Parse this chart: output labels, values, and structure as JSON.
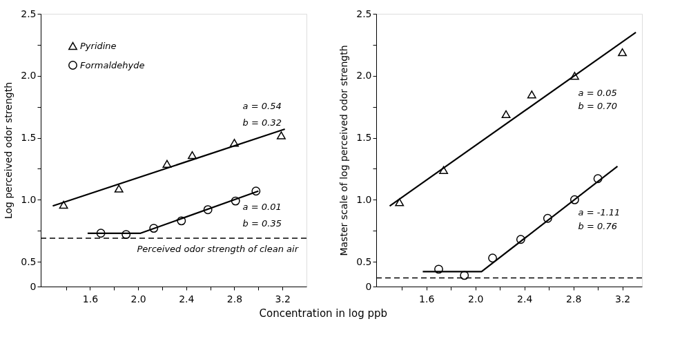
{
  "chart_data": [
    {
      "type": "scatter",
      "xlabel": "Concentration in log ppb",
      "ylabel": "Log perceived odor strength",
      "xlim": [
        1.19,
        3.4
      ],
      "xticks": [
        {
          "value": 1.4,
          "label": null
        },
        1.6,
        {
          "value": 1.8,
          "label": null
        },
        {
          "value": 2.0,
          "label": "2.0"
        },
        {
          "value": 2.2,
          "label": null
        },
        2.4,
        {
          "value": 2.6,
          "label": null
        },
        2.8,
        {
          "value": 3.0,
          "label": null
        },
        3.2
      ],
      "ylim": [
        0.3,
        2.5
      ],
      "yticks": [
        {
          "value": 0.3,
          "label": "0"
        },
        0.5,
        {
          "value": 0.75,
          "label": null
        },
        {
          "value": 1.0,
          "label": "1.0"
        },
        {
          "value": 1.25,
          "label": null
        },
        1.5,
        {
          "value": 1.75,
          "label": null
        },
        {
          "value": 2.0,
          "label": "2.0"
        },
        {
          "value": 2.25,
          "label": null
        },
        2.5
      ],
      "grid": false,
      "legend": "top left",
      "series": [
        {
          "name": "Pyridine",
          "type": "scatter",
          "marker": "triangle",
          "color": "#000000",
          "x": [
            1.38,
            1.84,
            2.24,
            2.45,
            2.8,
            3.19
          ],
          "values": [
            0.96,
            1.09,
            1.29,
            1.36,
            1.46,
            1.52
          ]
        },
        {
          "name": "Formaldehyde",
          "type": "scatter",
          "marker": "circle",
          "color": "#000000",
          "x": [
            1.69,
            1.9,
            2.13,
            2.36,
            2.58,
            2.81,
            2.98
          ],
          "values": [
            0.73,
            0.72,
            0.77,
            0.83,
            0.92,
            0.99,
            1.07
          ]
        },
        {
          "type": "line",
          "color": "#000000",
          "x": [
            1.29,
            3.22
          ],
          "values": [
            0.95,
            1.57
          ]
        },
        {
          "type": "line",
          "color": "#000000",
          "x": [
            1.58,
            2.02,
            3.0
          ],
          "values": [
            0.73,
            0.73,
            1.07
          ]
        }
      ],
      "ref_lines": [
        {
          "axis": "y",
          "value": 0.69,
          "label": "Perceived odor strength of clean air",
          "color": "#000000",
          "line_style": "dashed"
        }
      ],
      "annotations": [
        "a = 0.54",
        "b = 0.32",
        "a = 0.01",
        "b = 0.35"
      ]
    },
    {
      "type": "scatter",
      "ylabel": "Master scale of log perceived odor strength",
      "xlim": [
        1.19,
        3.36
      ],
      "xticks": [
        {
          "value": 1.4,
          "label": null
        },
        1.6,
        {
          "value": 1.8,
          "label": null
        },
        {
          "value": 2.0,
          "label": "2.0"
        },
        {
          "value": 2.2,
          "label": null
        },
        2.4,
        {
          "value": 2.6,
          "label": null
        },
        2.8,
        {
          "value": 3.0,
          "label": null
        },
        3.2
      ],
      "ylim": [
        0.3,
        2.5
      ],
      "yticks": [
        {
          "value": 0.3,
          "label": "0"
        },
        0.5,
        {
          "value": 0.75,
          "label": null
        },
        {
          "value": 1.0,
          "label": "1.0"
        },
        {
          "value": 1.25,
          "label": null
        },
        1.5,
        {
          "value": 1.75,
          "label": null
        },
        {
          "value": 2.0,
          "label": "2.0"
        },
        {
          "value": 2.25,
          "label": null
        },
        2.5
      ],
      "grid": false,
      "series": [
        {
          "type": "scatter",
          "marker": "triangle",
          "color": "#000000",
          "x": [
            1.38,
            1.74,
            2.25,
            2.46,
            2.81,
            3.2
          ],
          "values": [
            0.98,
            1.24,
            1.69,
            1.85,
            2.0,
            2.19
          ]
        },
        {
          "type": "scatter",
          "marker": "circle",
          "color": "#000000",
          "x": [
            1.7,
            1.91,
            2.14,
            2.37,
            2.59,
            2.81,
            3.0
          ],
          "values": [
            0.44,
            0.39,
            0.53,
            0.68,
            0.85,
            1.0,
            1.17
          ]
        },
        {
          "type": "line",
          "color": "#000000",
          "x": [
            1.3,
            3.31
          ],
          "values": [
            0.95,
            2.35
          ]
        },
        {
          "type": "line",
          "color": "#000000",
          "x": [
            1.57,
            2.05,
            3.16
          ],
          "values": [
            0.42,
            0.42,
            1.27
          ]
        }
      ],
      "ref_lines": [
        {
          "axis": "y",
          "value": 0.37,
          "color": "#000000",
          "line_style": "dashed"
        }
      ],
      "annotations": [
        "a =  0.05",
        "b =  0.70",
        "a = -1.11",
        "b =  0.76"
      ]
    }
  ]
}
